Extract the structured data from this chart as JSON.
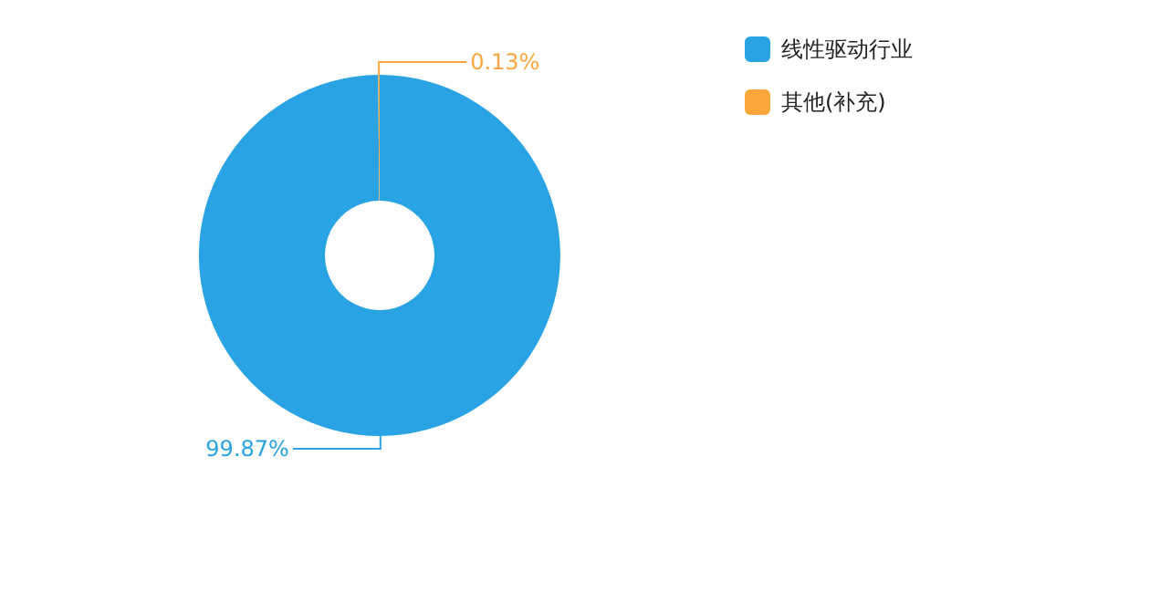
{
  "chart_data": {
    "type": "donut",
    "categories": [
      "线性驱动行业",
      "其他(补充)"
    ],
    "values": [
      99.87,
      0.13
    ],
    "colors": [
      "#29a3e3",
      "#fba63c"
    ],
    "value_labels": [
      "99.87%",
      "0.13%"
    ],
    "legend": "top right"
  }
}
